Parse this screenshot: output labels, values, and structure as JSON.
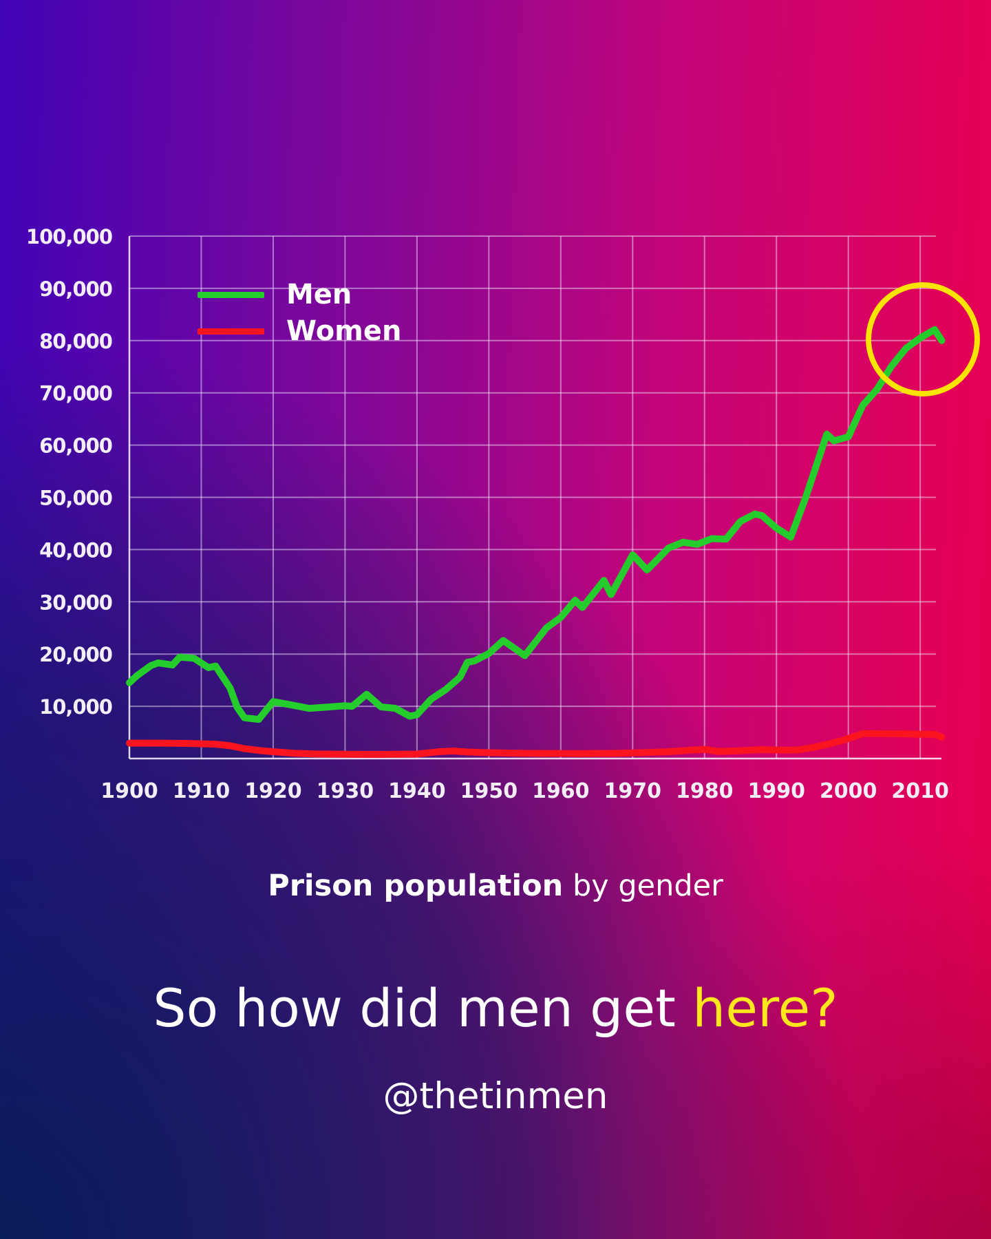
{
  "legend": {
    "men": "Men",
    "women": "Women"
  },
  "caption": {
    "title_bold": "Prison population",
    "title_rest": " by gender"
  },
  "footer": {
    "question_white": "So how did men get ",
    "question_yellow": "here?",
    "handle": "@thetinmen"
  },
  "colors": {
    "men_line": "#24cd2c",
    "women_line": "#f91420",
    "highlight_circle": "#f8e400",
    "background_top_left": "#4103b6",
    "background_top_right": "#e80050",
    "background_bottom_left": "#0a2256",
    "gridline": "rgba(236,230,248,0.5)",
    "text": "#ffffff"
  },
  "chart_data": {
    "type": "line",
    "title": "Prison population by gender",
    "xlabel": "",
    "ylabel": "",
    "xlim": [
      1900,
      2013
    ],
    "ylim": [
      0,
      100000
    ],
    "grid": true,
    "legend_position": "top-left-inside",
    "x_ticks": [
      1900,
      1910,
      1920,
      1930,
      1940,
      1950,
      1960,
      1970,
      1980,
      1990,
      2000,
      2010
    ],
    "y_ticks": [
      {
        "value": 100000,
        "label": "100,000"
      },
      {
        "value": 90000,
        "label": "90,000"
      },
      {
        "value": 80000,
        "label": "80,000"
      },
      {
        "value": 70000,
        "label": "70,000"
      },
      {
        "value": 60000,
        "label": "60,000"
      },
      {
        "value": 50000,
        "label": "50,000"
      },
      {
        "value": 40000,
        "label": "40,000"
      },
      {
        "value": 30000,
        "label": "30,000"
      },
      {
        "value": 20000,
        "label": "20,000"
      },
      {
        "value": 10000,
        "label": "10,000"
      }
    ],
    "series": [
      {
        "name": "Men",
        "color": "#24cd2c",
        "points": [
          [
            1900,
            14500
          ],
          [
            1901,
            15800
          ],
          [
            1903,
            17800
          ],
          [
            1904,
            18300
          ],
          [
            1906,
            17900
          ],
          [
            1907,
            19400
          ],
          [
            1909,
            19200
          ],
          [
            1911,
            17400
          ],
          [
            1912,
            17700
          ],
          [
            1914,
            13500
          ],
          [
            1915,
            9800
          ],
          [
            1916,
            7800
          ],
          [
            1918,
            7500
          ],
          [
            1920,
            10900
          ],
          [
            1922,
            10400
          ],
          [
            1925,
            9600
          ],
          [
            1927,
            9800
          ],
          [
            1930,
            10100
          ],
          [
            1931,
            10000
          ],
          [
            1933,
            12300
          ],
          [
            1935,
            9900
          ],
          [
            1937,
            9600
          ],
          [
            1939,
            8100
          ],
          [
            1940,
            8400
          ],
          [
            1942,
            11400
          ],
          [
            1944,
            13200
          ],
          [
            1946,
            15600
          ],
          [
            1947,
            18400
          ],
          [
            1948,
            18700
          ],
          [
            1950,
            20100
          ],
          [
            1952,
            22600
          ],
          [
            1955,
            19700
          ],
          [
            1958,
            25000
          ],
          [
            1960,
            27000
          ],
          [
            1962,
            30300
          ],
          [
            1963,
            28900
          ],
          [
            1966,
            34100
          ],
          [
            1967,
            31400
          ],
          [
            1970,
            39000
          ],
          [
            1972,
            36100
          ],
          [
            1975,
            40300
          ],
          [
            1977,
            41400
          ],
          [
            1979,
            41000
          ],
          [
            1981,
            42100
          ],
          [
            1983,
            42000
          ],
          [
            1985,
            45400
          ],
          [
            1987,
            46800
          ],
          [
            1988,
            46500
          ],
          [
            1990,
            44100
          ],
          [
            1992,
            42400
          ],
          [
            1994,
            49700
          ],
          [
            1997,
            62100
          ],
          [
            1998,
            60800
          ],
          [
            2000,
            61600
          ],
          [
            2002,
            67600
          ],
          [
            2004,
            70700
          ],
          [
            2006,
            75100
          ],
          [
            2008,
            78500
          ],
          [
            2010,
            80500
          ],
          [
            2012,
            82100
          ],
          [
            2013,
            80000
          ]
        ]
      },
      {
        "name": "Women",
        "color": "#f91420",
        "points": [
          [
            1900,
            2950
          ],
          [
            1904,
            2950
          ],
          [
            1908,
            2900
          ],
          [
            1912,
            2750
          ],
          [
            1914,
            2450
          ],
          [
            1916,
            1900
          ],
          [
            1918,
            1550
          ],
          [
            1920,
            1300
          ],
          [
            1923,
            1000
          ],
          [
            1926,
            870
          ],
          [
            1930,
            820
          ],
          [
            1935,
            790
          ],
          [
            1940,
            860
          ],
          [
            1943,
            1300
          ],
          [
            1945,
            1450
          ],
          [
            1947,
            1250
          ],
          [
            1950,
            1120
          ],
          [
            1954,
            1020
          ],
          [
            1958,
            980
          ],
          [
            1963,
            960
          ],
          [
            1968,
            1000
          ],
          [
            1972,
            1150
          ],
          [
            1975,
            1300
          ],
          [
            1978,
            1600
          ],
          [
            1980,
            1750
          ],
          [
            1982,
            1350
          ],
          [
            1985,
            1500
          ],
          [
            1988,
            1700
          ],
          [
            1991,
            1600
          ],
          [
            1993,
            1650
          ],
          [
            1995,
            2100
          ],
          [
            1997,
            2700
          ],
          [
            1999,
            3400
          ],
          [
            2001,
            4300
          ],
          [
            2002,
            4750
          ],
          [
            2005,
            4750
          ],
          [
            2008,
            4700
          ],
          [
            2010,
            4650
          ],
          [
            2012,
            4650
          ],
          [
            2013,
            4100
          ]
        ]
      }
    ],
    "annotation": {
      "shape": "circle",
      "x_year": 2010.5,
      "y_value": 80500,
      "color": "#f8e400",
      "meaning": "yellow circle highlighting men's recent peak"
    }
  }
}
